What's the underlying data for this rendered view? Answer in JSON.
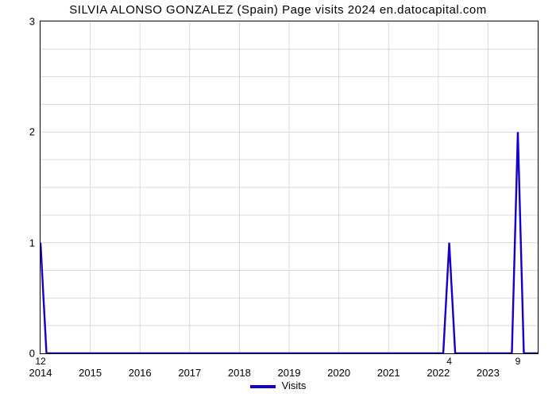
{
  "chart": {
    "type": "line",
    "title": "SILVIA ALONSO GONZALEZ (Spain) Page visits 2024 en.datocapital.com",
    "title_fontsize": 15,
    "title_color": "#000000",
    "background_color": "#ffffff",
    "plot_border_color": "#000000",
    "grid_color": "#d9d9d9",
    "x": {
      "min": 2014,
      "max": 2024,
      "ticks": [
        2014,
        2015,
        2016,
        2017,
        2018,
        2019,
        2020,
        2021,
        2022,
        2023
      ],
      "tick_fontsize": 13
    },
    "y": {
      "min": 0,
      "max": 3,
      "ticks": [
        0,
        1,
        2,
        3
      ],
      "grid_minor": [
        0.25,
        0.5,
        0.75,
        1.25,
        1.5,
        1.75,
        2.25,
        2.5,
        2.75
      ],
      "tick_fontsize": 13
    },
    "series": {
      "name": "Visits",
      "color": "#1400c8",
      "line_width": 2.4,
      "points": [
        [
          2014.0,
          1.0
        ],
        [
          2014.12,
          0.0
        ],
        [
          2022.1,
          0.0
        ],
        [
          2022.22,
          1.0
        ],
        [
          2022.34,
          0.0
        ],
        [
          2023.48,
          0.0
        ],
        [
          2023.6,
          2.0
        ],
        [
          2023.72,
          0.0
        ],
        [
          2024.0,
          0.0
        ]
      ]
    },
    "bar_annotations": [
      {
        "x": 2014.0,
        "label": "12"
      },
      {
        "x": 2022.22,
        "label": "4"
      },
      {
        "x": 2023.6,
        "label": "9"
      }
    ],
    "legend": {
      "label": "Visits",
      "swatch_color": "#1400c8",
      "fontsize": 13
    }
  }
}
